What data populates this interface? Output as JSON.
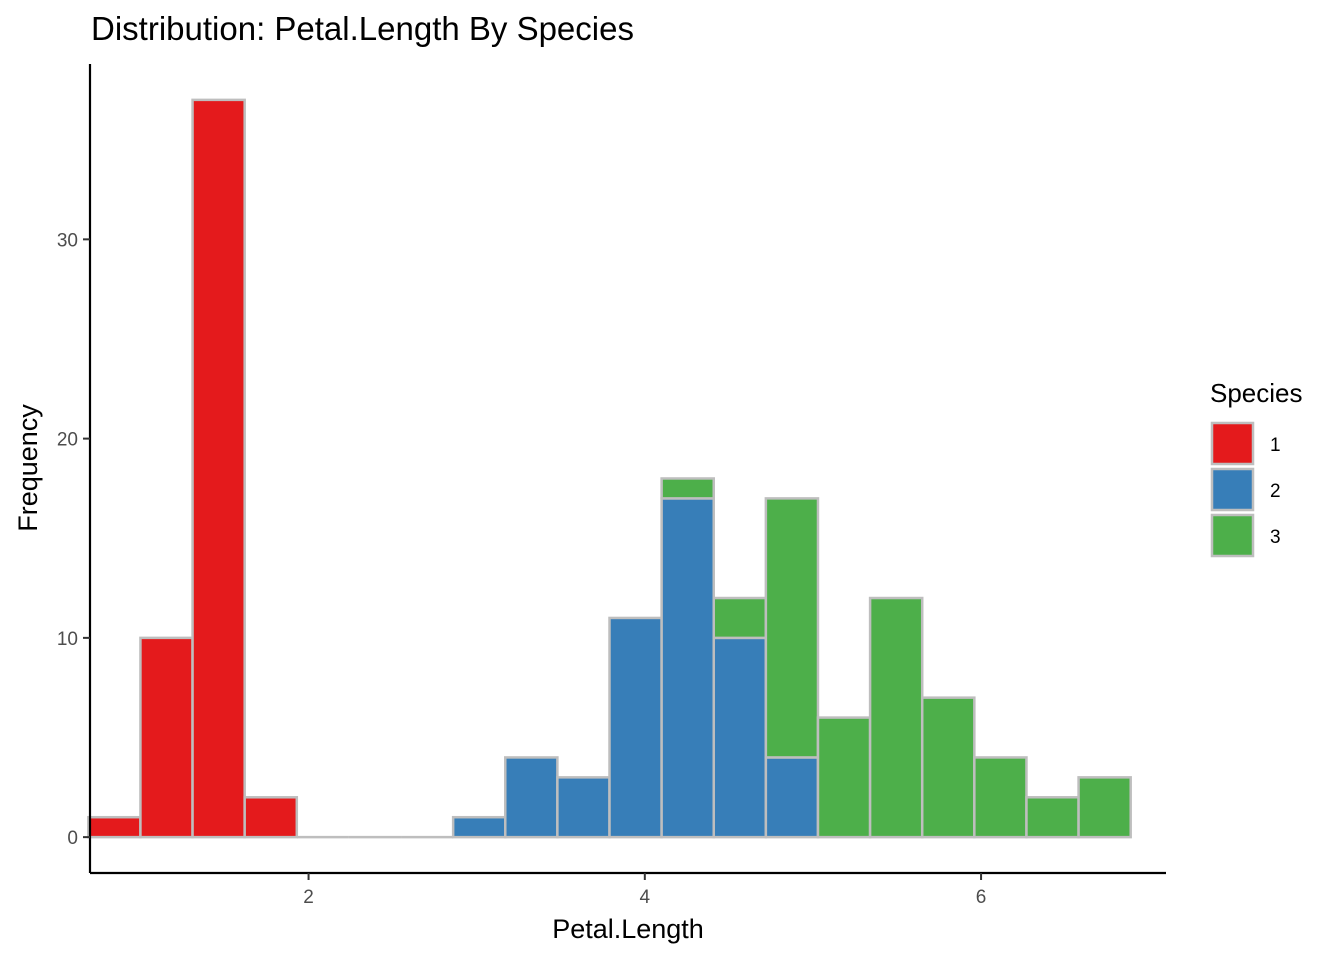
{
  "chart_data": {
    "type": "bar",
    "subtype": "stacked-histogram",
    "title": "Distribution: Petal.Length By Species",
    "xlabel": "Petal.Length",
    "ylabel": "Frequency",
    "xlim": [
      0.7,
      7.1
    ],
    "ylim": [
      -1.8,
      38.8
    ],
    "x_ticks": [
      2,
      4,
      6
    ],
    "x_tick_labels": [
      "2",
      "4",
      "6"
    ],
    "y_ticks": [
      0,
      10,
      20,
      30
    ],
    "y_tick_labels": [
      "0",
      "10",
      "20",
      "30"
    ],
    "bin_edges": [
      0.69,
      1.0,
      1.31,
      1.62,
      1.93,
      2.24,
      2.55,
      2.86,
      3.17,
      3.48,
      3.79,
      4.1,
      4.41,
      4.72,
      5.03,
      5.34,
      5.65,
      5.96,
      6.27,
      6.58,
      6.89
    ],
    "series": [
      {
        "name": "1",
        "color": "#E41A1C",
        "values": [
          1,
          10,
          37,
          2,
          0,
          0,
          0,
          0,
          0,
          0,
          0,
          0,
          0,
          0,
          0,
          0,
          0,
          0,
          0,
          0
        ]
      },
      {
        "name": "2",
        "color": "#377EB8",
        "values": [
          0,
          0,
          0,
          0,
          0,
          0,
          0,
          1,
          4,
          3,
          11,
          17,
          10,
          4,
          0,
          0,
          0,
          0,
          0,
          0
        ]
      },
      {
        "name": "3",
        "color": "#4DAF4A",
        "values": [
          0,
          0,
          0,
          0,
          0,
          0,
          0,
          0,
          0,
          0,
          0,
          1,
          2,
          13,
          6,
          12,
          7,
          4,
          2,
          3
        ]
      }
    ],
    "bar_outline_color": "#BEBEBE",
    "grid": false,
    "legend": {
      "title": "Species",
      "placement": "right",
      "labels": [
        "1",
        "2",
        "3"
      ]
    }
  }
}
